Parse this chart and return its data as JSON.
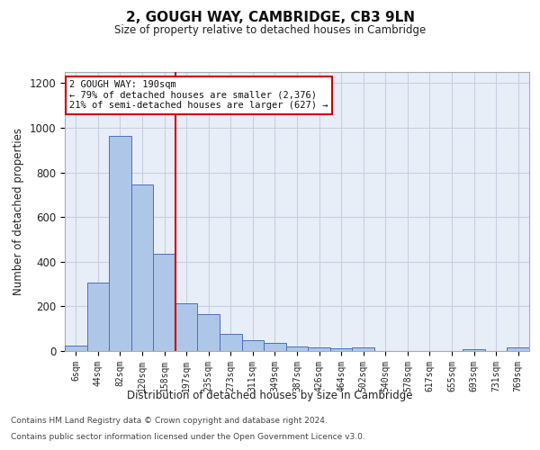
{
  "title": "2, GOUGH WAY, CAMBRIDGE, CB3 9LN",
  "subtitle": "Size of property relative to detached houses in Cambridge",
  "xlabel": "Distribution of detached houses by size in Cambridge",
  "ylabel": "Number of detached properties",
  "footnote1": "Contains HM Land Registry data © Crown copyright and database right 2024.",
  "footnote2": "Contains public sector information licensed under the Open Government Licence v3.0.",
  "annotation_line1": "2 GOUGH WAY: 190sqm",
  "annotation_line2": "← 79% of detached houses are smaller (2,376)",
  "annotation_line3": "21% of semi-detached houses are larger (627) →",
  "bar_categories": [
    "6sqm",
    "44sqm",
    "82sqm",
    "120sqm",
    "158sqm",
    "197sqm",
    "235sqm",
    "273sqm",
    "311sqm",
    "349sqm",
    "387sqm",
    "426sqm",
    "464sqm",
    "502sqm",
    "540sqm",
    "578sqm",
    "617sqm",
    "655sqm",
    "693sqm",
    "731sqm",
    "769sqm"
  ],
  "bar_values": [
    25,
    305,
    965,
    745,
    435,
    215,
    165,
    75,
    48,
    35,
    20,
    15,
    12,
    15,
    0,
    0,
    0,
    0,
    10,
    0,
    15
  ],
  "bar_color": "#aec6e8",
  "bar_edge_color": "#4472c4",
  "vline_index": 5,
  "vline_color": "#cc0000",
  "ylim": [
    0,
    1250
  ],
  "yticks": [
    0,
    200,
    400,
    600,
    800,
    1000,
    1200
  ],
  "background_color": "#e8eef8",
  "annotation_box_color": "#ffffff",
  "annotation_box_edge": "#cc0000",
  "grid_color": "#c8d0e0"
}
